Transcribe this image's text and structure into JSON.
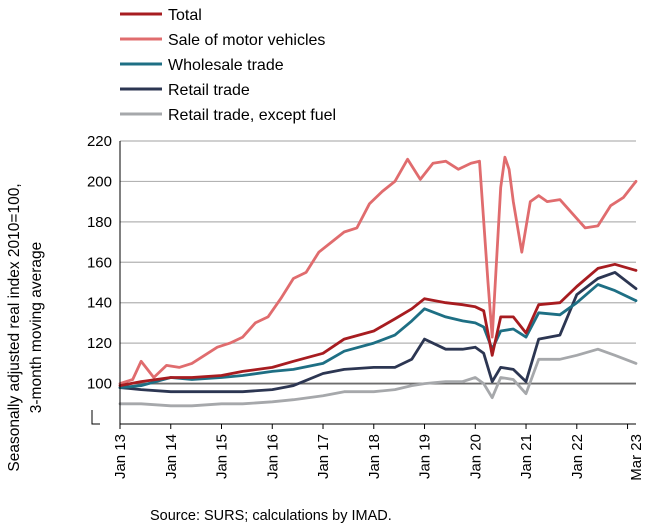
{
  "source_note": "Source: SURS; calculations by IMAD.",
  "chart_data": {
    "type": "line",
    "ylabel_lines": [
      "Seasonally adjusted real index 2010=100,",
      "3-month moving average"
    ],
    "xlabel": "",
    "ylim": [
      80,
      220
    ],
    "yticks": [
      100,
      120,
      140,
      160,
      180,
      200,
      220
    ],
    "xlim": [
      "2013-01",
      "2023-03"
    ],
    "xtick_labels": [
      "Jan 13",
      "Jan 14",
      "Jan 15",
      "Jan 16",
      "Jan 17",
      "Jan 18",
      "Jan 19",
      "Jan 20",
      "Jan 21",
      "Jan 22",
      "Mar 23"
    ],
    "axis_break": true,
    "reference_line": 100,
    "grid": "horizontal",
    "legend_position": "top",
    "series": [
      {
        "name": "Total",
        "color": "#a71c20",
        "points": [
          [
            "2013-01",
            99
          ],
          [
            "2013-06",
            101
          ],
          [
            "2014-01",
            103
          ],
          [
            "2014-06",
            103
          ],
          [
            "2015-01",
            104
          ],
          [
            "2015-06",
            106
          ],
          [
            "2016-01",
            108
          ],
          [
            "2016-06",
            111
          ],
          [
            "2017-01",
            115
          ],
          [
            "2017-06",
            122
          ],
          [
            "2018-01",
            126
          ],
          [
            "2018-06",
            132
          ],
          [
            "2018-10",
            137
          ],
          [
            "2019-01",
            142
          ],
          [
            "2019-06",
            140
          ],
          [
            "2019-10",
            139
          ],
          [
            "2020-01",
            138
          ],
          [
            "2020-03",
            136
          ],
          [
            "2020-05",
            114
          ],
          [
            "2020-07",
            133
          ],
          [
            "2020-10",
            133
          ],
          [
            "2021-01",
            125
          ],
          [
            "2021-04",
            139
          ],
          [
            "2021-09",
            140
          ],
          [
            "2022-01",
            148
          ],
          [
            "2022-06",
            157
          ],
          [
            "2022-10",
            159
          ],
          [
            "2023-03",
            156
          ]
        ]
      },
      {
        "name": "Sale of motor vehicles",
        "color": "#e06c6e",
        "points": [
          [
            "2013-01",
            100
          ],
          [
            "2013-04",
            102
          ],
          [
            "2013-06",
            111
          ],
          [
            "2013-09",
            103
          ],
          [
            "2013-12",
            109
          ],
          [
            "2014-03",
            108
          ],
          [
            "2014-06",
            110
          ],
          [
            "2014-12",
            118
          ],
          [
            "2015-03",
            120
          ],
          [
            "2015-06",
            123
          ],
          [
            "2015-09",
            130
          ],
          [
            "2015-12",
            133
          ],
          [
            "2016-03",
            142
          ],
          [
            "2016-06",
            152
          ],
          [
            "2016-09",
            155
          ],
          [
            "2016-12",
            165
          ],
          [
            "2017-03",
            170
          ],
          [
            "2017-06",
            175
          ],
          [
            "2017-09",
            177
          ],
          [
            "2017-12",
            189
          ],
          [
            "2018-03",
            195
          ],
          [
            "2018-06",
            200
          ],
          [
            "2018-09",
            211
          ],
          [
            "2018-12",
            201
          ],
          [
            "2019-03",
            209
          ],
          [
            "2019-06",
            210
          ],
          [
            "2019-09",
            206
          ],
          [
            "2019-12",
            209
          ],
          [
            "2020-02",
            210
          ],
          [
            "2020-04",
            150
          ],
          [
            "2020-05",
            123
          ],
          [
            "2020-07",
            197
          ],
          [
            "2020-08",
            212
          ],
          [
            "2020-09",
            206
          ],
          [
            "2020-10",
            190
          ],
          [
            "2020-12",
            165
          ],
          [
            "2021-02",
            190
          ],
          [
            "2021-04",
            193
          ],
          [
            "2021-06",
            190
          ],
          [
            "2021-09",
            191
          ],
          [
            "2021-12",
            184
          ],
          [
            "2022-03",
            177
          ],
          [
            "2022-06",
            178
          ],
          [
            "2022-09",
            188
          ],
          [
            "2022-12",
            192
          ],
          [
            "2023-03",
            200
          ]
        ]
      },
      {
        "name": "Wholesale trade",
        "color": "#1e6f84",
        "points": [
          [
            "2013-01",
            98
          ],
          [
            "2013-06",
            99
          ],
          [
            "2014-01",
            103
          ],
          [
            "2014-06",
            102
          ],
          [
            "2015-01",
            103
          ],
          [
            "2015-06",
            104
          ],
          [
            "2016-01",
            106
          ],
          [
            "2016-06",
            107
          ],
          [
            "2017-01",
            110
          ],
          [
            "2017-06",
            116
          ],
          [
            "2018-01",
            120
          ],
          [
            "2018-06",
            124
          ],
          [
            "2018-10",
            131
          ],
          [
            "2019-01",
            137
          ],
          [
            "2019-06",
            133
          ],
          [
            "2019-10",
            131
          ],
          [
            "2020-01",
            130
          ],
          [
            "2020-03",
            128
          ],
          [
            "2020-05",
            117
          ],
          [
            "2020-07",
            126
          ],
          [
            "2020-10",
            127
          ],
          [
            "2021-01",
            123
          ],
          [
            "2021-04",
            135
          ],
          [
            "2021-09",
            134
          ],
          [
            "2022-01",
            140
          ],
          [
            "2022-06",
            149
          ],
          [
            "2022-10",
            146
          ],
          [
            "2023-03",
            141
          ]
        ]
      },
      {
        "name": "Retail trade",
        "color": "#2c3652",
        "points": [
          [
            "2013-01",
            98
          ],
          [
            "2013-06",
            97
          ],
          [
            "2014-01",
            96
          ],
          [
            "2014-06",
            96
          ],
          [
            "2015-01",
            96
          ],
          [
            "2015-06",
            96
          ],
          [
            "2016-01",
            97
          ],
          [
            "2016-06",
            99
          ],
          [
            "2017-01",
            105
          ],
          [
            "2017-06",
            107
          ],
          [
            "2018-01",
            108
          ],
          [
            "2018-06",
            108
          ],
          [
            "2018-10",
            112
          ],
          [
            "2019-01",
            122
          ],
          [
            "2019-06",
            117
          ],
          [
            "2019-10",
            117
          ],
          [
            "2020-01",
            118
          ],
          [
            "2020-03",
            115
          ],
          [
            "2020-05",
            101
          ],
          [
            "2020-07",
            108
          ],
          [
            "2020-10",
            107
          ],
          [
            "2021-01",
            101
          ],
          [
            "2021-04",
            122
          ],
          [
            "2021-09",
            124
          ],
          [
            "2022-01",
            144
          ],
          [
            "2022-06",
            152
          ],
          [
            "2022-10",
            155
          ],
          [
            "2023-03",
            147
          ]
        ]
      },
      {
        "name": "Retail trade, except fuel",
        "color": "#a6a8ab",
        "points": [
          [
            "2013-01",
            90
          ],
          [
            "2013-06",
            90
          ],
          [
            "2014-01",
            89
          ],
          [
            "2014-06",
            89
          ],
          [
            "2015-01",
            90
          ],
          [
            "2015-06",
            90
          ],
          [
            "2016-01",
            91
          ],
          [
            "2016-06",
            92
          ],
          [
            "2017-01",
            94
          ],
          [
            "2017-06",
            96
          ],
          [
            "2018-01",
            96
          ],
          [
            "2018-06",
            97
          ],
          [
            "2018-10",
            99
          ],
          [
            "2019-01",
            100
          ],
          [
            "2019-06",
            101
          ],
          [
            "2019-10",
            101
          ],
          [
            "2020-01",
            103
          ],
          [
            "2020-03",
            100
          ],
          [
            "2020-05",
            93
          ],
          [
            "2020-07",
            103
          ],
          [
            "2020-10",
            102
          ],
          [
            "2021-01",
            95
          ],
          [
            "2021-04",
            112
          ],
          [
            "2021-09",
            112
          ],
          [
            "2022-01",
            114
          ],
          [
            "2022-06",
            117
          ],
          [
            "2022-10",
            114
          ],
          [
            "2023-03",
            110
          ]
        ]
      }
    ]
  }
}
